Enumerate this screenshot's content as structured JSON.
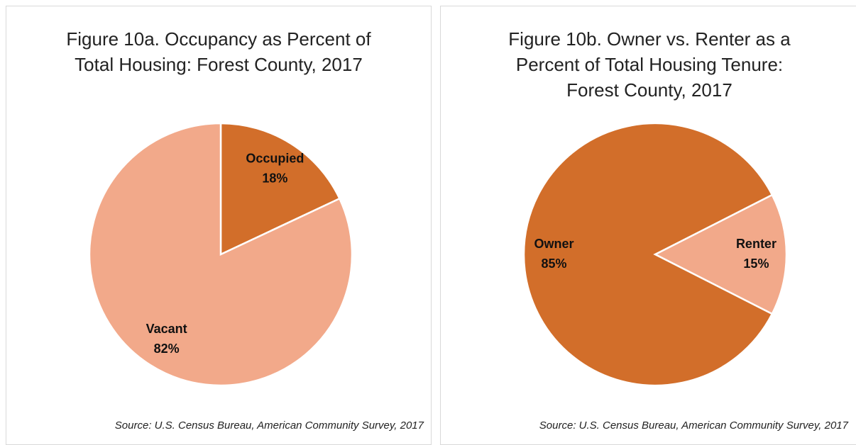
{
  "chart_data": [
    {
      "type": "pie",
      "title": "Figure 10a. Occupancy as Percent of Total Housing: Forest County, 2017",
      "categories": [
        "Occupied",
        "Vacant"
      ],
      "values": [
        18,
        82
      ],
      "value_labels": [
        "18%",
        "82%"
      ],
      "colors": [
        "#d26e2a",
        "#f2a98a"
      ],
      "source": "Source: U.S. Census Bureau, American Community Survey, 2017"
    },
    {
      "type": "pie",
      "title": "Figure 10b. Owner vs. Renter as a Percent of Total Housing Tenure: Forest County, 2017",
      "categories": [
        "Renter",
        "Owner"
      ],
      "values": [
        15,
        85
      ],
      "value_labels": [
        "15%",
        "85%"
      ],
      "colors": [
        "#f2a98a",
        "#d26e2a"
      ],
      "source": "Source: U.S. Census Bureau, American Community Survey, 2017"
    }
  ]
}
